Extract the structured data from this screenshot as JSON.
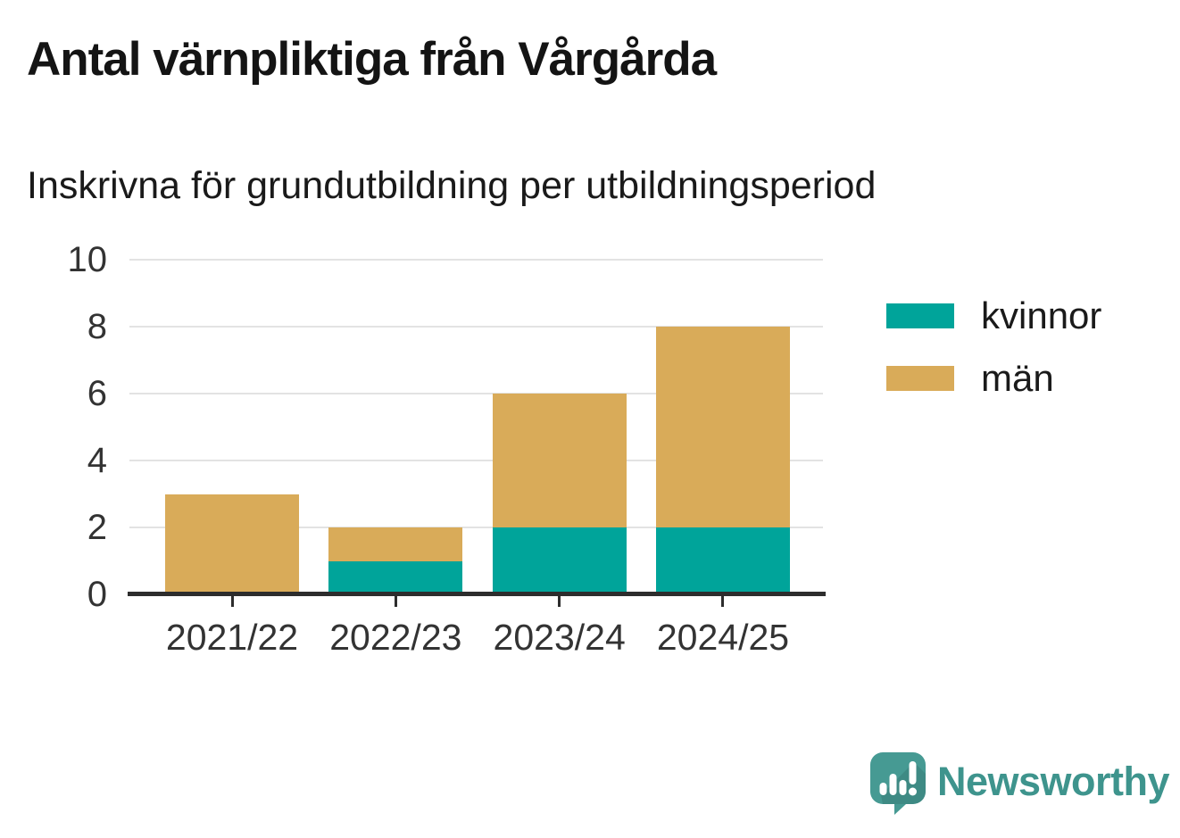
{
  "chart_data": {
    "type": "bar",
    "stacked": true,
    "title": "Antal värnpliktiga från Vårgårda",
    "subtitle": "Inskrivna för grundutbildning per utbildningsperiod",
    "categories": [
      "2021/22",
      "2022/23",
      "2023/24",
      "2024/25"
    ],
    "series": [
      {
        "name": "kvinnor",
        "color": "#00a49a",
        "values": [
          0,
          1,
          2,
          2
        ]
      },
      {
        "name": "män",
        "color": "#d9ab59",
        "values": [
          3,
          1,
          4,
          6
        ]
      }
    ],
    "totals": [
      3,
      2,
      6,
      8
    ],
    "ylim": [
      0,
      10
    ],
    "yticks": [
      0,
      2,
      4,
      6,
      8,
      10
    ],
    "grid": true,
    "legend_position": "right",
    "colors": {
      "axis": "#2d2d2d",
      "gridline": "#e3e3e3",
      "tick_label": "#333333"
    }
  },
  "branding": {
    "name": "Newsworthy",
    "text_color": "#3e948d",
    "logo_color": "#469a93"
  }
}
